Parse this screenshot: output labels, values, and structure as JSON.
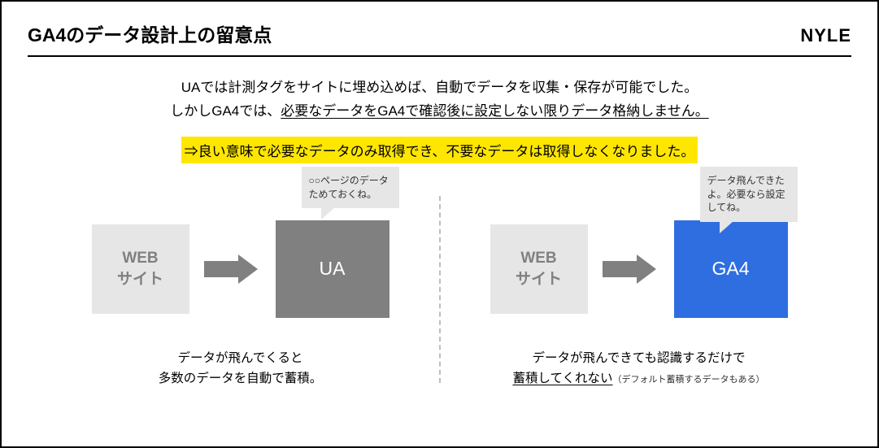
{
  "header": {
    "title": "GA4のデータ設計上の留意点",
    "logo": "NYLE"
  },
  "intro": {
    "line1": "UAでは計測タグをサイトに埋め込めば、自動でデータを収集・保存が可能でした。",
    "line2_prefix": "しかしGA4では、",
    "line2_under": "必要なデータをGA4で確認後に設定しない限りデータ格納しません。"
  },
  "highlight": "⇒良い意味で必要なデータのみ取得でき、不要なデータは取得しなくなりました。",
  "left": {
    "web_label": "WEB\nサイト",
    "box_label": "UA",
    "speech": "○○ページのデータためておくね。",
    "caption_l1": "データが飛んでくると",
    "caption_l2": "多数のデータを自動で蓄積。"
  },
  "right": {
    "web_label": "WEB\nサイト",
    "box_label": "GA4",
    "speech": "データ飛んできたよ。必要なら設定してね。",
    "caption_l1": "データが飛んできても認識するだけで",
    "caption_under": "蓄積してくれない",
    "caption_small": "（デフォルト蓄積するデータもある）"
  },
  "colors": {
    "ua_box": "#808080",
    "ga4_box": "#2f6ee0",
    "web_box_bg": "#e6e6e6",
    "web_box_text": "#808080",
    "arrow": "#808080",
    "highlight_bg": "#ffe600",
    "divider": "#bdbdbd",
    "speech_bg": "#e6e6e6"
  }
}
